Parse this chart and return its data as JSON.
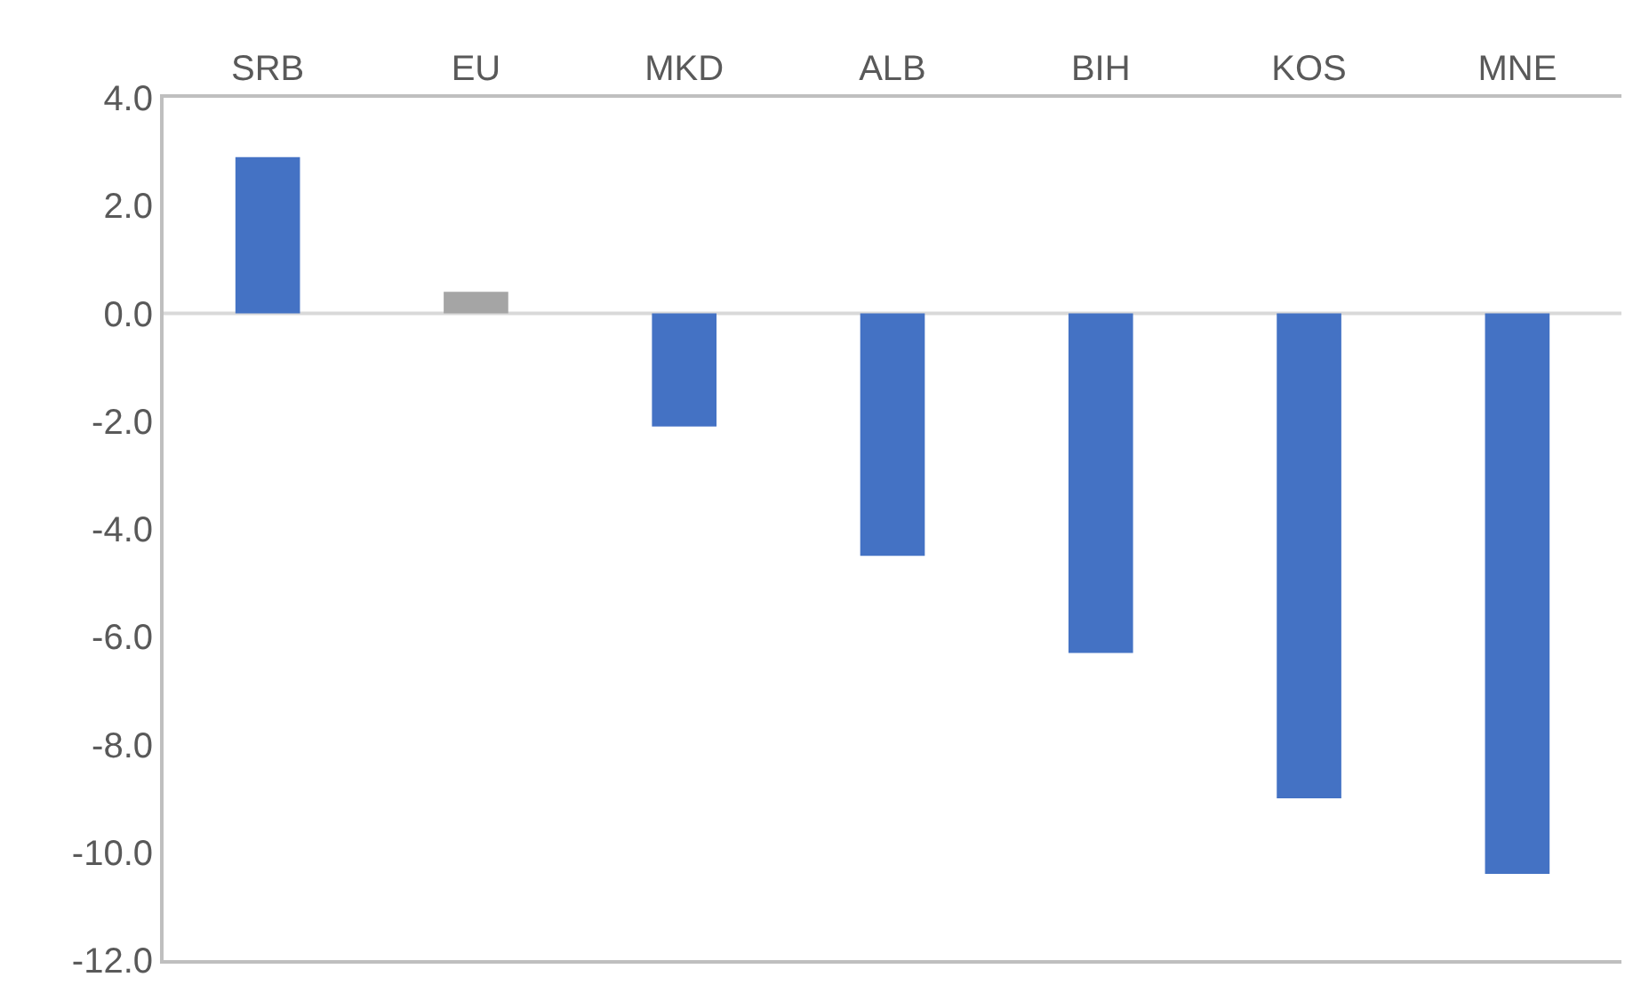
{
  "chart_data": {
    "type": "bar",
    "categories": [
      "SRB",
      "EU",
      "MKD",
      "ALB",
      "BIH",
      "KOS",
      "MNE"
    ],
    "values": [
      2.9,
      0.4,
      -2.1,
      -4.5,
      -6.3,
      -9.0,
      -10.4
    ],
    "colors": [
      "#4472c4",
      "#a5a5a5",
      "#4472c4",
      "#4472c4",
      "#4472c4",
      "#4472c4",
      "#4472c4"
    ],
    "ylim": [
      -12,
      4
    ],
    "yticks": [
      {
        "value": 4,
        "label": "4.0"
      },
      {
        "value": 2,
        "label": "2.0"
      },
      {
        "value": 0,
        "label": "0.0"
      },
      {
        "value": -2,
        "label": "-2.0"
      },
      {
        "value": -4,
        "label": "-4.0"
      },
      {
        "value": -6,
        "label": "-6.0"
      },
      {
        "value": -8,
        "label": "-8.0"
      },
      {
        "value": -10,
        "label": "-10.0"
      },
      {
        "value": -12,
        "label": "-12.0"
      }
    ],
    "ref_lines": [
      {
        "axis": "y",
        "value": 0,
        "color": "#d9d9d9"
      }
    ],
    "grid": false
  }
}
